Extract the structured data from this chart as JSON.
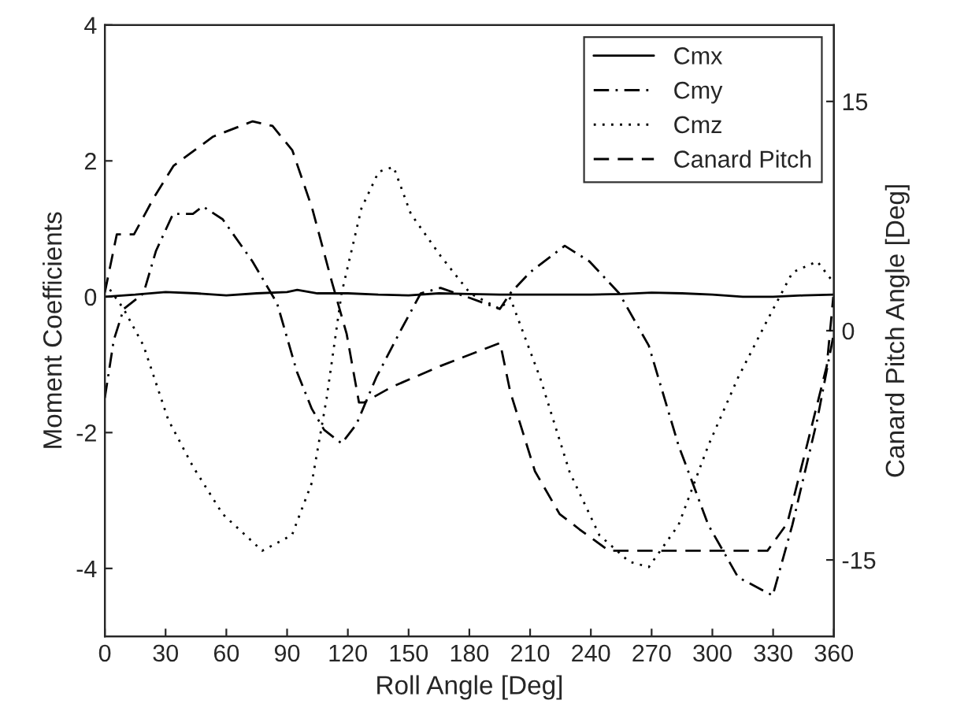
{
  "chart_data": {
    "type": "line",
    "xlabel": "Roll Angle [Deg]",
    "ylabel": "Moment Coefficients",
    "y2label": "Canard Pitch Angle [Deg]",
    "xlim": [
      0,
      360
    ],
    "xticks": [
      0,
      30,
      60,
      90,
      120,
      150,
      180,
      210,
      240,
      270,
      300,
      330,
      360
    ],
    "ylim": [
      -5,
      4
    ],
    "yticks": [
      -4,
      -2,
      0,
      2,
      4
    ],
    "y2lim": [
      -20,
      20
    ],
    "y2ticks": [
      -15,
      0,
      15
    ],
    "grid": false,
    "legend": "top right",
    "marker": "none",
    "series": [
      {
        "name": "Cmx",
        "color": "#000000",
        "line_style": "solid",
        "x": [
          0,
          15,
          30,
          45,
          60,
          75,
          90,
          95,
          105,
          120,
          135,
          150,
          165,
          180,
          195,
          210,
          225,
          240,
          255,
          270,
          285,
          300,
          315,
          330,
          345,
          360
        ],
        "values": [
          0,
          0.03,
          0.07,
          0.05,
          0.02,
          0.05,
          0.07,
          0.1,
          0.05,
          0.05,
          0.03,
          0.02,
          0.05,
          0.04,
          0.03,
          0.03,
          0.03,
          0.03,
          0.04,
          0.06,
          0.05,
          0.03,
          0.0,
          0.0,
          0.02,
          0.03
        ]
      },
      {
        "name": "Cmy",
        "color": "#000000",
        "line_style": "dashdot",
        "x": [
          0,
          4.4,
          9.3,
          19.1,
          25.2,
          33.7,
          43.5,
          48.4,
          58.2,
          72.9,
          85.1,
          94.9,
          102.2,
          108.3,
          116.9,
          124.2,
          134,
          146.2,
          156,
          165.8,
          180.4,
          195.1,
          200.2,
          210,
          227.1,
          239.3,
          254,
          268.6,
          283.3,
          298,
          312.7,
          329.8,
          339.5,
          351.8,
          359.8
        ],
        "values": [
          -1.49,
          -0.64,
          -0.18,
          0.05,
          0.67,
          1.22,
          1.22,
          1.33,
          1.14,
          0.52,
          -0.1,
          -1.11,
          -1.65,
          -1.96,
          -2.16,
          -1.88,
          -1.19,
          -0.49,
          0.05,
          0.13,
          -0.02,
          -0.18,
          0.05,
          0.36,
          0.75,
          0.52,
          0.05,
          -0.72,
          -2.19,
          -3.36,
          -4.13,
          -4.4,
          -3.36,
          -1.81,
          -0.57
        ]
      },
      {
        "name": "Cmz",
        "color": "#000000",
        "line_style": "dotted",
        "x": [
          0,
          9.3,
          19.1,
          31.3,
          43.5,
          58.2,
          77.7,
          92.4,
          102.2,
          109.5,
          116.9,
          126.7,
          135.2,
          142.6,
          151.1,
          165.8,
          180.4,
          195.1,
          200.2,
          214.9,
          229.5,
          244.2,
          258.9,
          268.6,
          283.3,
          298,
          312.7,
          327.4,
          339.6,
          351.8,
          359.8
        ],
        "values": [
          0.21,
          -0.18,
          -0.72,
          -1.81,
          -2.5,
          -3.2,
          -3.74,
          -3.51,
          -2.74,
          -1.5,
          0.05,
          1.3,
          1.84,
          1.91,
          1.22,
          0.6,
          0.05,
          -0.18,
          -0.02,
          -1.19,
          -2.58,
          -3.51,
          -3.9,
          -3.98,
          -3.36,
          -2.19,
          -1.19,
          -0.33,
          0.36,
          0.52,
          0.21
        ]
      },
      {
        "name": "Canard Pitch",
        "color": "#000000",
        "line_style": "dashed",
        "axis": "y2",
        "x": [
          0,
          5.9,
          14.4,
          24.2,
          34,
          53.5,
          73,
          82.8,
          92.6,
          102.4,
          112.1,
          119.4,
          125.5,
          128,
          141.4,
          165.9,
          195.2,
          200.2,
          212.4,
          224.6,
          234.4,
          249,
          327.2,
          337,
          346.7,
          356.5,
          359.7
        ],
        "values": [
          2.5,
          6.3,
          6.3,
          8.7,
          10.8,
          12.7,
          13.7,
          13.4,
          11.8,
          8.0,
          3.2,
          -0.2,
          -4.7,
          -4.7,
          -3.7,
          -2.3,
          -0.8,
          -4.0,
          -9.2,
          -12.0,
          -13.0,
          -14.4,
          -14.4,
          -12.6,
          -7.5,
          -2.3,
          2.2
        ]
      }
    ]
  }
}
